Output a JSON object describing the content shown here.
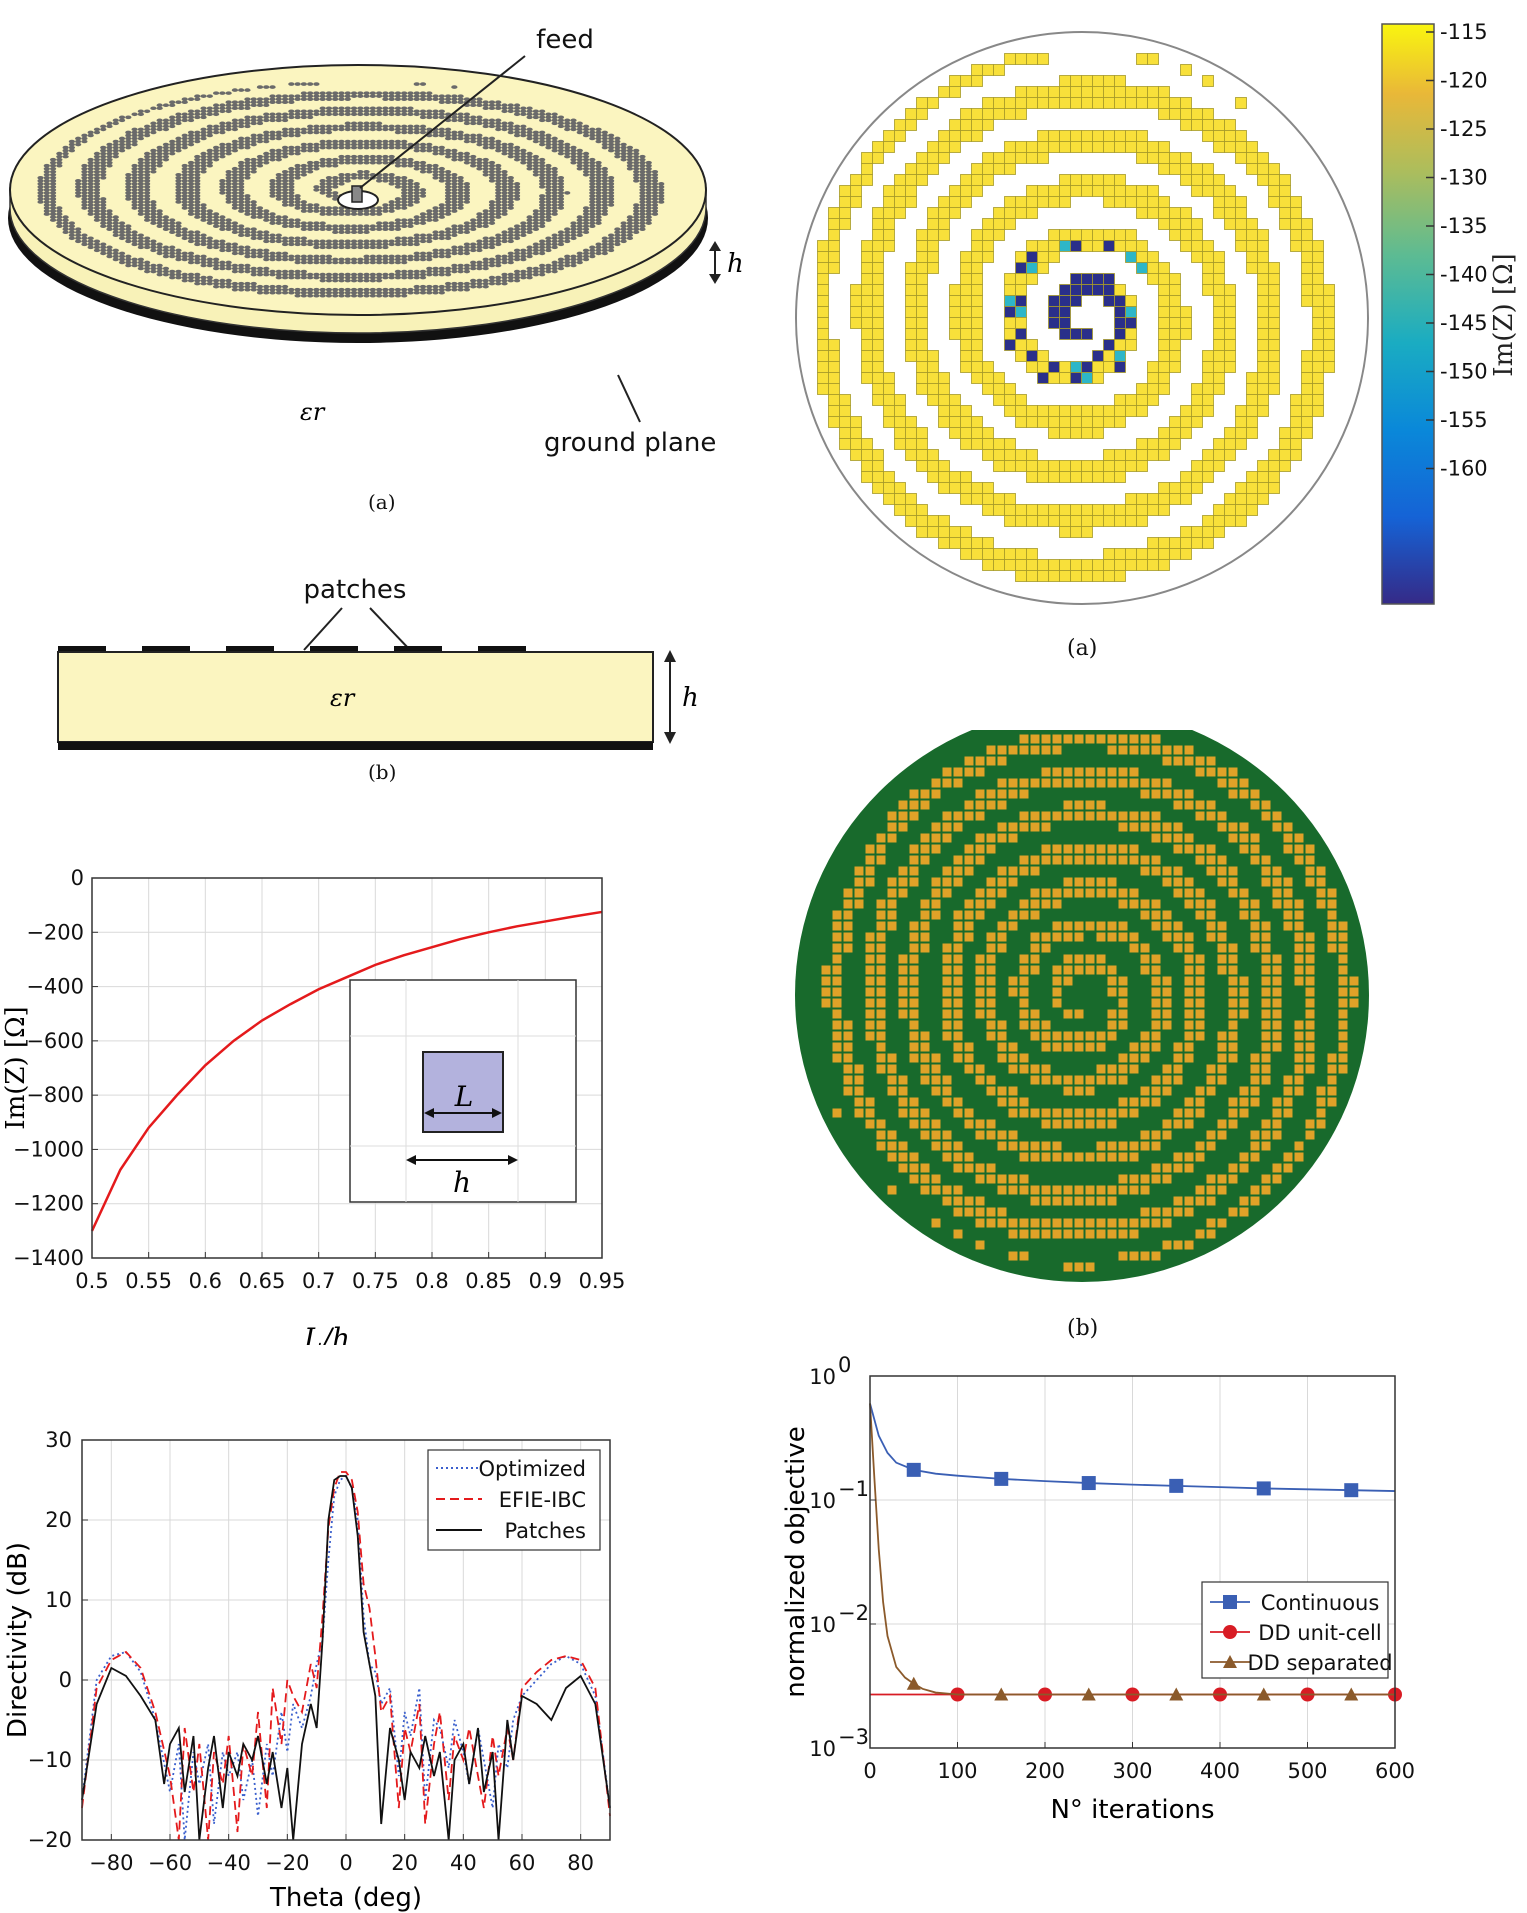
{
  "antenna3d": {
    "feed_label": "feed",
    "height_symbol": "h",
    "eps_symbol": "εr",
    "ground_label": "ground plane",
    "caption": "(a)"
  },
  "cross_section": {
    "patches_label": "patches",
    "eps_symbol": "εr",
    "height_symbol": "h",
    "caption": "(b)"
  },
  "impedance_map": {
    "caption": "(a)",
    "colorbar_label": "Im(Z) [Ω]",
    "colorbar_ticks": [
      "-115",
      "-120",
      "-125",
      "-130",
      "-135",
      "-140",
      "-145",
      "-150",
      "-155",
      "-160"
    ],
    "colors": {
      "high": "#f8e03a",
      "low": "#2a2f8a",
      "mid": "#2db6c8",
      "edge": "#a69a2a"
    }
  },
  "patch_layout": {
    "caption": "(b)",
    "colors": {
      "background": "#186a2c",
      "patch": "#e0a228"
    }
  },
  "chart_data": [
    {
      "type": "line",
      "xlabel": "L/h",
      "ylabel": "Im(Z) [Ω]",
      "xlim": [
        0.5,
        0.95
      ],
      "ylim": [
        -1400,
        0
      ],
      "xticks": [
        "0.5",
        "0.55",
        "0.6",
        "0.65",
        "0.7",
        "0.75",
        "0.8",
        "0.85",
        "0.9",
        "0.95"
      ],
      "yticks": [
        "0",
        "−200",
        "−400",
        "−600",
        "−800",
        "−1000",
        "−1200",
        "−1400"
      ],
      "grid": true,
      "series": [
        {
          "color": "#e41a1c",
          "x": [
            0.5,
            0.525,
            0.55,
            0.575,
            0.6,
            0.625,
            0.65,
            0.675,
            0.7,
            0.725,
            0.75,
            0.775,
            0.8,
            0.825,
            0.85,
            0.875,
            0.9,
            0.925,
            0.95
          ],
          "y": [
            -1300,
            -1075,
            -920,
            -800,
            -690,
            -600,
            -525,
            -465,
            -410,
            -365,
            -320,
            -285,
            -255,
            -225,
            -200,
            -178,
            -160,
            -142,
            -125
          ]
        }
      ],
      "inset": {
        "side_label": "L",
        "period_label": "h"
      }
    },
    {
      "type": "line",
      "xlabel": "Theta (deg)",
      "ylabel": "Directivity (dB)",
      "xlim": [
        -90,
        90
      ],
      "ylim": [
        -20,
        30
      ],
      "xticks": [
        "−80",
        "−60",
        "−40",
        "−20",
        "0",
        "20",
        "40",
        "60",
        "80"
      ],
      "yticks": [
        "30",
        "20",
        "10",
        "0",
        "−10",
        "−20"
      ],
      "grid": true,
      "legend": "top-right",
      "series": [
        {
          "name": "Optimized",
          "color": "#3a5fcd",
          "dash": "dotted",
          "x": [
            -90,
            -85,
            -80,
            -75,
            -70,
            -65,
            -60,
            -57,
            -55,
            -52,
            -50,
            -47,
            -45,
            -42,
            -40,
            -37,
            -35,
            -32,
            -30,
            -27,
            -25,
            -22,
            -20,
            -18,
            -15,
            -12,
            -10,
            -8,
            -6,
            -4,
            -2,
            0,
            2,
            4,
            6,
            8,
            10,
            12,
            15,
            18,
            20,
            22,
            25,
            27,
            30,
            32,
            35,
            37,
            40,
            42,
            45,
            47,
            50,
            52,
            55,
            57,
            60,
            65,
            70,
            75,
            80,
            85,
            90
          ],
          "y": [
            -15,
            0,
            3,
            3.5,
            1,
            -5,
            -14,
            -8,
            -20,
            -9,
            -13,
            -8,
            -18,
            -9,
            -12,
            -9,
            -15,
            -10,
            -17,
            -8,
            -12,
            -4,
            -9,
            -3,
            -6,
            -2,
            2,
            5,
            15,
            23,
            25,
            25.5,
            24,
            20,
            8,
            2,
            1,
            -3,
            -1,
            -12,
            -4,
            -7,
            -1,
            -15,
            -5,
            -6,
            -11,
            -5,
            -9,
            -13,
            -6,
            -10,
            -16,
            -8,
            -11,
            -5,
            -2,
            0,
            2,
            3,
            2,
            -2,
            -16
          ]
        },
        {
          "name": "EFIE-IBC",
          "color": "#e41a1c",
          "dash": "dashed",
          "x": [
            -90,
            -85,
            -80,
            -75,
            -70,
            -65,
            -60,
            -57,
            -55,
            -52,
            -50,
            -47,
            -45,
            -42,
            -40,
            -37,
            -35,
            -32,
            -30,
            -27,
            -25,
            -22,
            -20,
            -18,
            -15,
            -12,
            -10,
            -8,
            -6,
            -4,
            -2,
            0,
            2,
            4,
            6,
            8,
            10,
            12,
            15,
            18,
            20,
            22,
            25,
            27,
            30,
            32,
            35,
            37,
            40,
            42,
            45,
            47,
            50,
            52,
            55,
            57,
            60,
            65,
            70,
            75,
            80,
            85,
            90
          ],
          "y": [
            -16,
            -1,
            2.5,
            3.5,
            1.5,
            -4,
            -12,
            -20,
            -6,
            -14,
            -8,
            -20,
            -9,
            -13,
            -7,
            -19,
            -8,
            -12,
            -4,
            -16,
            -1,
            -8,
            0,
            -2,
            -4,
            2,
            -1,
            8,
            19,
            24,
            26,
            26,
            25,
            21,
            12,
            9,
            3,
            -4,
            -2,
            -16,
            -6,
            -9,
            -3,
            -18,
            -8,
            -4,
            -15,
            -7,
            -10,
            -6,
            -12,
            -16,
            -7,
            -12,
            -6,
            -10,
            -1,
            1,
            2.5,
            3,
            2.5,
            -1,
            -17
          ]
        },
        {
          "name": "Patches",
          "color": "#111111",
          "dash": "solid",
          "x": [
            -90,
            -85,
            -80,
            -75,
            -70,
            -65,
            -62,
            -60,
            -57,
            -55,
            -52,
            -50,
            -47,
            -45,
            -42,
            -40,
            -37,
            -35,
            -32,
            -30,
            -27,
            -25,
            -22,
            -20,
            -18,
            -15,
            -12,
            -10,
            -8,
            -6,
            -4,
            -2,
            0,
            2,
            4,
            6,
            8,
            10,
            12,
            15,
            18,
            20,
            22,
            25,
            27,
            30,
            32,
            35,
            37,
            40,
            42,
            45,
            47,
            50,
            52,
            55,
            57,
            60,
            65,
            70,
            75,
            80,
            85,
            90
          ],
          "y": [
            -15,
            -3,
            1.5,
            0.5,
            -2,
            -5,
            -13,
            -8,
            -6,
            -14,
            -7,
            -20,
            -11,
            -7,
            -16,
            -9,
            -12,
            -8,
            -10,
            -7,
            -13,
            -9,
            -16,
            -11,
            -20,
            -8,
            -3,
            -6,
            5,
            20,
            25,
            25.5,
            25.5,
            24,
            18,
            6,
            2,
            -2,
            -18,
            -6,
            -10,
            -15,
            -9,
            -11,
            -7,
            -12,
            -9,
            -20,
            -10,
            -8,
            -13,
            -6,
            -14,
            -9,
            -20,
            -5,
            -10,
            -2,
            -3,
            -5,
            -1,
            0.5,
            -3,
            -16
          ]
        }
      ]
    },
    {
      "type": "line",
      "xlabel": "N° iterations",
      "ylabel": "normalized objective",
      "xlim": [
        0,
        600
      ],
      "ylim": [
        0.001,
        1
      ],
      "yscale": "log",
      "xticks": [
        "0",
        "100",
        "200",
        "300",
        "400",
        "500",
        "600"
      ],
      "yticks": [
        "10",
        "10",
        "10",
        "10"
      ],
      "ytick_exponents": [
        "0",
        "−1",
        "−2",
        "−3"
      ],
      "grid": true,
      "legend": "center-right",
      "series": [
        {
          "name": "Continuous",
          "color": "#3a5fb4",
          "marker": "square",
          "x": [
            0,
            10,
            20,
            30,
            50,
            75,
            100,
            150,
            200,
            250,
            300,
            350,
            400,
            450,
            500,
            550,
            600
          ],
          "y": [
            0.6,
            0.33,
            0.24,
            0.2,
            0.175,
            0.163,
            0.157,
            0.148,
            0.142,
            0.137,
            0.133,
            0.13,
            0.127,
            0.124,
            0.122,
            0.12,
            0.118
          ],
          "markers_x": [
            50,
            150,
            250,
            350,
            450,
            550
          ]
        },
        {
          "name": "DD unit-cell",
          "color": "#d81c24",
          "marker": "circle",
          "x": [
            0,
            100,
            200,
            300,
            400,
            500,
            600
          ],
          "y": [
            0.0027,
            0.0027,
            0.0027,
            0.0027,
            0.0027,
            0.0027,
            0.0027
          ],
          "markers_x": [
            100,
            200,
            300,
            400,
            500,
            600
          ]
        },
        {
          "name": "DD separated",
          "color": "#8b5a2b",
          "marker": "triangle",
          "x": [
            0,
            5,
            10,
            15,
            20,
            30,
            40,
            50,
            60,
            75,
            100,
            150,
            200,
            300,
            400,
            500,
            550,
            600
          ],
          "y": [
            0.6,
            0.15,
            0.04,
            0.015,
            0.008,
            0.0045,
            0.0037,
            0.0033,
            0.003,
            0.0028,
            0.0027,
            0.0027,
            0.0027,
            0.0027,
            0.0027,
            0.0027,
            0.0027,
            0.0027
          ],
          "markers_x": [
            50,
            150,
            250,
            350,
            450,
            550
          ]
        }
      ]
    }
  ]
}
